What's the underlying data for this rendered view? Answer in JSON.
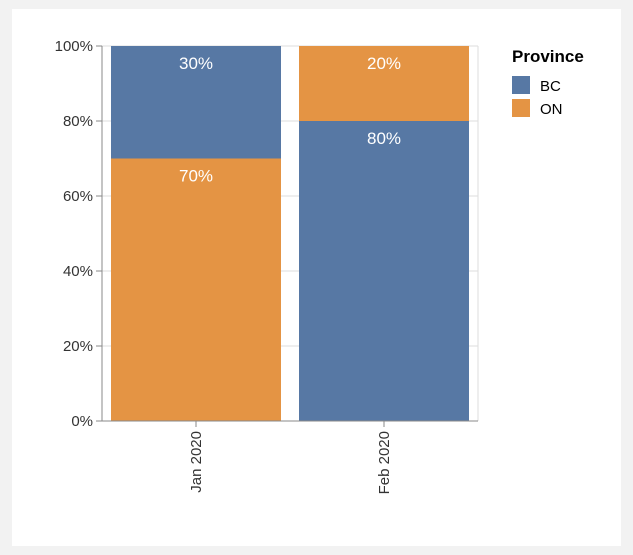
{
  "chart_data": {
    "type": "bar",
    "stacked": true,
    "normalized": true,
    "categories": [
      "Jan 2020",
      "Feb 2020"
    ],
    "series": [
      {
        "name": "BC",
        "values": [
          0.3,
          0.8
        ],
        "color": "#5778a4"
      },
      {
        "name": "ON",
        "values": [
          0.7,
          0.2
        ],
        "color": "#e49444"
      }
    ],
    "stack_order": {
      "Jan 2020": [
        "ON",
        "BC"
      ],
      "Feb 2020": [
        "BC",
        "ON"
      ]
    },
    "ylim": [
      0,
      1
    ],
    "yticks": [
      0,
      0.2,
      0.4,
      0.6,
      0.8,
      1.0
    ],
    "ytick_labels": [
      "0%",
      "20%",
      "40%",
      "60%",
      "80%",
      "100%"
    ],
    "legend": {
      "title": "Province",
      "placement": "right"
    },
    "grid": true
  }
}
